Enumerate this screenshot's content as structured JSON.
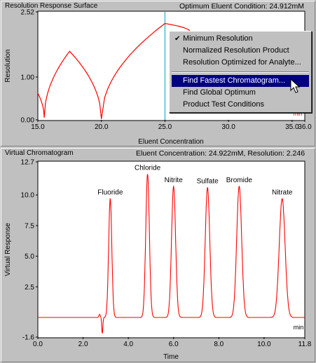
{
  "top_panel": {
    "title": "Resolution Response Surface",
    "info": "Optimum Eluent Condition: 24.912mM",
    "y_label": "Resolution",
    "x_label": "Eluent Concentration",
    "y_ticks": [
      "2.52",
      "1.00",
      "0.00"
    ],
    "x_ticks": [
      "15.0",
      "20.0",
      "25.0",
      "30.0",
      "35.0",
      "36.0"
    ],
    "marker_label": "min"
  },
  "context_menu": {
    "items": [
      {
        "label": "Minimum Resolution",
        "checked": true
      },
      {
        "label": "Normalized Resolution Product"
      },
      {
        "label": "Resolution Optimized for Analyte..."
      },
      {
        "label": "Find Fastest Chromatogram...",
        "selected": true
      },
      {
        "label": "Find Global Optimum"
      },
      {
        "label": "Product Test Conditions"
      }
    ]
  },
  "bottom_panel": {
    "title": "Virtual Chromatogram",
    "info": "Eluent Concentration: 24.922mM, Resolution: 2.246",
    "y_label": "Virtual Response",
    "x_label": "Time",
    "unit_label": "min",
    "y_ticks": [
      "12.7",
      "10.0",
      "7.5",
      "5.0",
      "2.5",
      "-1.6"
    ],
    "x_ticks": [
      "0.0",
      "2.0",
      "4.0",
      "6.0",
      "8.0",
      "10.0",
      "11.8"
    ],
    "peak_labels": [
      "Fluoride",
      "Chloride",
      "Nitrite",
      "Sulfate",
      "Bromide",
      "Nitrate"
    ]
  },
  "colors": {
    "trace": "#ff0000",
    "optimum_line": "#00a0c0",
    "menu_highlight": "#000080"
  },
  "chart_data": [
    {
      "type": "line",
      "title": "Resolution Response Surface",
      "xlabel": "Eluent Concentration",
      "ylabel": "Resolution",
      "xlim": [
        15.0,
        36.0
      ],
      "ylim": [
        0.0,
        2.52
      ],
      "x": [
        15.0,
        15.5,
        17.5,
        20.0,
        25.0,
        27.0
      ],
      "y": [
        0.62,
        0.05,
        1.6,
        0.02,
        2.25,
        2.05
      ]
    },
    {
      "type": "line",
      "title": "Virtual Chromatogram",
      "xlabel": "Time",
      "ylabel": "Virtual Response",
      "xlim": [
        0.0,
        11.8
      ],
      "ylim": [
        -1.6,
        12.7
      ],
      "peaks": [
        {
          "name": "Fluoride",
          "time": 3.2,
          "height": 9.7
        },
        {
          "name": "Chloride",
          "time": 4.85,
          "height": 11.7
        },
        {
          "name": "Nitrite",
          "time": 6.0,
          "height": 10.7
        },
        {
          "name": "Sulfate",
          "time": 7.5,
          "height": 10.6
        },
        {
          "name": "Bromide",
          "time": 8.9,
          "height": 10.7
        },
        {
          "name": "Nitrate",
          "time": 10.8,
          "height": 9.7
        }
      ],
      "dip": {
        "time": 2.85,
        "value": -1.3
      }
    }
  ]
}
